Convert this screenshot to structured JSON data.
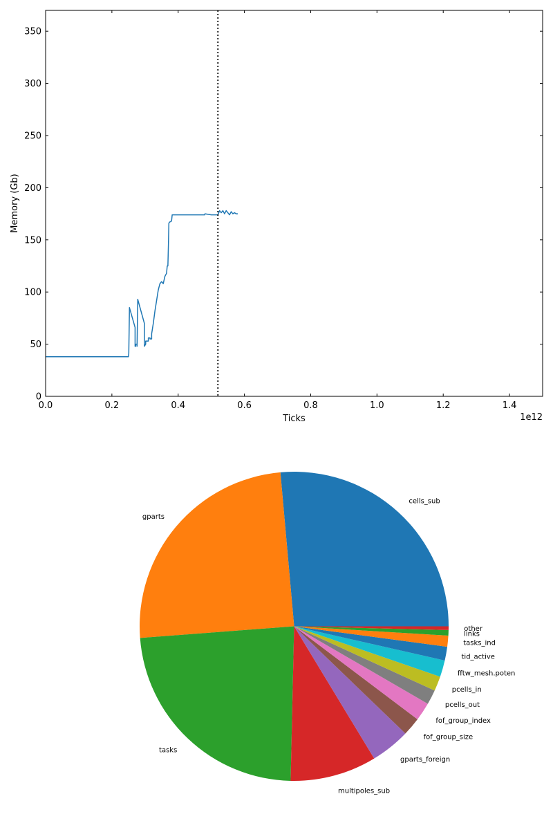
{
  "chart_data": [
    {
      "type": "line",
      "title": "",
      "xlabel": "Ticks",
      "ylabel": "Memory (Gb)",
      "x_offset_label": "1e12",
      "xlim": [
        0,
        1.5
      ],
      "ylim": [
        0,
        370
      ],
      "xticks": [
        0.0,
        0.2,
        0.4,
        0.6,
        0.8,
        1.0,
        1.2,
        1.4
      ],
      "xtick_labels": [
        "0.0",
        "0.2",
        "0.4",
        "0.6",
        "0.8",
        "1.0",
        "1.2",
        "1.4"
      ],
      "yticks": [
        0,
        50,
        100,
        150,
        200,
        250,
        300,
        350
      ],
      "ytick_labels": [
        "0",
        "50",
        "100",
        "150",
        "200",
        "250",
        "300",
        "350"
      ],
      "grid": false,
      "vline": {
        "x": 0.52,
        "style": "dotted",
        "color": "#000000"
      },
      "series": [
        {
          "color": "#1f77b4",
          "x": [
            0.0,
            0.25,
            0.251,
            0.253,
            0.253,
            0.27,
            0.27,
            0.272,
            0.272,
            0.276,
            0.276,
            0.278,
            0.278,
            0.298,
            0.298,
            0.302,
            0.302,
            0.31,
            0.31,
            0.315,
            0.315,
            0.32,
            0.32,
            0.325,
            0.33,
            0.335,
            0.34,
            0.345,
            0.35,
            0.355,
            0.36,
            0.365,
            0.367,
            0.369,
            0.371,
            0.372,
            0.372,
            0.374,
            0.374,
            0.38,
            0.382,
            0.382,
            0.42,
            0.48,
            0.481,
            0.5,
            0.52,
            0.525,
            0.53,
            0.535,
            0.54,
            0.545,
            0.55,
            0.555,
            0.56,
            0.565,
            0.57,
            0.575,
            0.58
          ],
          "y": [
            38,
            38,
            41,
            85,
            85,
            66,
            48,
            48,
            50,
            50,
            48,
            93,
            93,
            70,
            48,
            50,
            53,
            53,
            56,
            56,
            55,
            55,
            60,
            70,
            82,
            92,
            102,
            108,
            110,
            108,
            115,
            118,
            125,
            125,
            150,
            166,
            166,
            167,
            167,
            168,
            174,
            174,
            174,
            174,
            175,
            174,
            174,
            178,
            176,
            178,
            175,
            178,
            176,
            174,
            177,
            175,
            176,
            175,
            175
          ]
        }
      ]
    },
    {
      "type": "pie",
      "title": "",
      "legend": "none",
      "labels": [
        "cells_sub",
        "gparts",
        "tasks",
        "multipoles_sub",
        "gparts_foreign",
        "fof_group_size",
        "fof_group_index",
        "pcells_out",
        "pcells_in",
        "fftw_mesh.poten",
        "tid_active",
        "tasks_ind",
        "links",
        "other"
      ],
      "values": [
        27.5,
        25.8,
        24.4,
        9.4,
        4.3,
        2.0,
        2.0,
        1.6,
        1.6,
        1.8,
        1.5,
        1.2,
        0.6,
        0.4
      ],
      "colors": [
        "#1f77b4",
        "#ff7f0e",
        "#2ca02c",
        "#d62728",
        "#9467bd",
        "#8c564b",
        "#e377c2",
        "#7f7f7f",
        "#bcbd22",
        "#17becf",
        "#1f77b4",
        "#ff7f0e",
        "#2ca02c",
        "#d62728"
      ]
    }
  ]
}
